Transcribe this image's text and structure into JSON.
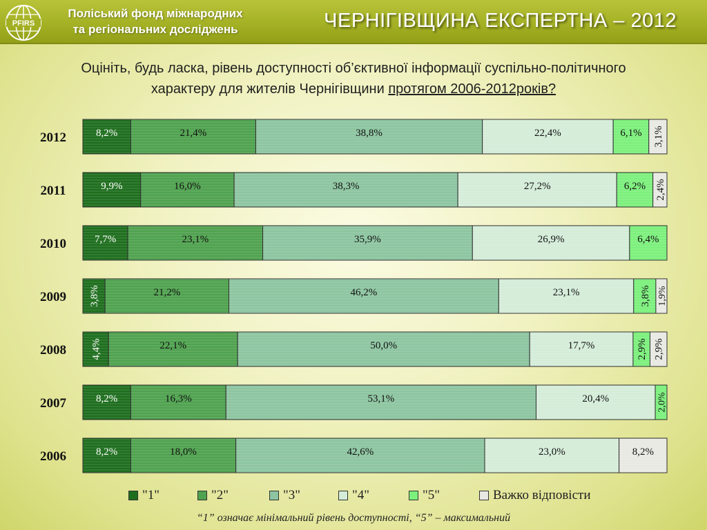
{
  "header": {
    "logo_text": "PFIRS",
    "org_line1": "Поліський фонд міжнародних",
    "org_line2": "та регіональних досліджень",
    "title": "ЧЕРНІГІВЩИНА ЕКСПЕРТНА – 2012"
  },
  "question": {
    "line1": "Оцініть, будь ласка, рівень доступності об’єктивної інформації суспільно-політичного",
    "line2": "характеру для жителів Чернігівщини ",
    "line2_underlined": "протягом 2006-2012років?"
  },
  "colors": {
    "cat1": "#1e6e1e",
    "cat2": "#4fa24f",
    "cat3": "#8dc5a0",
    "cat4": "#d4ecd8",
    "cat5": "#7cf07c",
    "hard": "#e9e9e3"
  },
  "chart_data": {
    "type": "bar",
    "orientation": "horizontal",
    "stacked": true,
    "percent": true,
    "categories": [
      "2012",
      "2011",
      "2010",
      "2009",
      "2008",
      "2007",
      "2006"
    ],
    "series": [
      {
        "name": "\"1\"",
        "values": [
          8.2,
          9.9,
          7.7,
          3.8,
          4.4,
          8.2,
          8.2
        ]
      },
      {
        "name": "\"2\"",
        "values": [
          21.4,
          16.0,
          23.1,
          21.2,
          22.1,
          16.3,
          18.0
        ]
      },
      {
        "name": "\"3\"",
        "values": [
          38.8,
          38.3,
          35.9,
          46.2,
          50.0,
          53.1,
          42.6
        ]
      },
      {
        "name": "\"4\"",
        "values": [
          22.4,
          27.2,
          26.9,
          23.1,
          17.7,
          20.4,
          23.0
        ]
      },
      {
        "name": "\"5\"",
        "values": [
          6.1,
          6.2,
          6.4,
          3.8,
          2.9,
          2.0,
          0
        ]
      },
      {
        "name": "Важко відповісти",
        "values": [
          3.1,
          2.4,
          0,
          1.9,
          2.9,
          0,
          8.2
        ]
      }
    ],
    "labels": [
      [
        "8,2%",
        "21,4%",
        "38,8%",
        "22,4%",
        "6,1%",
        "3,1%"
      ],
      [
        "9,9%",
        "16,0%",
        "38,3%",
        "27,2%",
        "6,2%",
        "2,4%"
      ],
      [
        "7,7%",
        "23,1%",
        "35,9%",
        "26,9%",
        "6,4%",
        ""
      ],
      [
        "3,8%",
        "21,2%",
        "46,2%",
        "23,1%",
        "3,8%",
        "1,9%"
      ],
      [
        "4,4%",
        "22,1%",
        "50,0%",
        "17,7%",
        "2,9%",
        "2,9%"
      ],
      [
        "8,2%",
        "16,3%",
        "53,1%",
        "20,4%",
        "2,0%",
        ""
      ],
      [
        "8,2%",
        "18,0%",
        "42,6%",
        "23,0%",
        "",
        "8,2%"
      ]
    ],
    "legend": [
      "\"1\"",
      "\"2\"",
      "\"3\"",
      "\"4\"",
      "\"5\"",
      "Важко відповісти"
    ],
    "legend_position": "bottom",
    "xlim": [
      0,
      100
    ]
  },
  "footnote": "“1” означає мінімальний рівень доступності, “5” – максимальний"
}
